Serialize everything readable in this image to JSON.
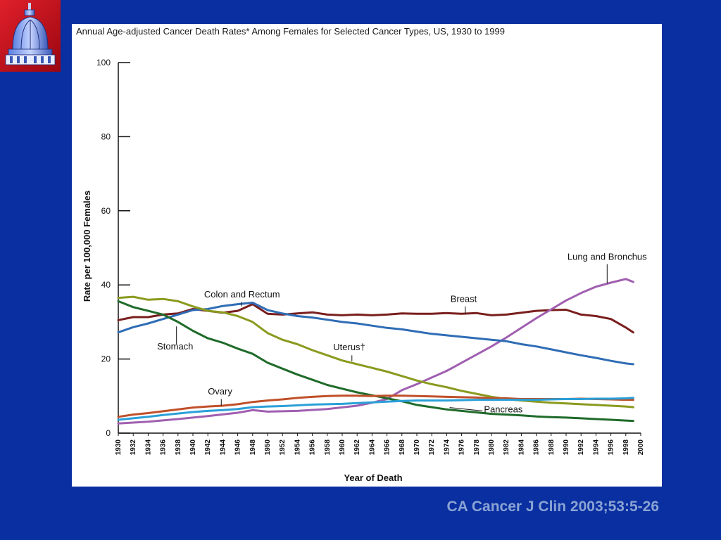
{
  "citation": "CA Cancer J Clin 2003;53:5-26",
  "logo": {
    "icon": "capitol-dome-icon"
  },
  "chart_data": {
    "type": "line",
    "title": "Annual Age-adjusted Cancer Death Rates* Among Females for Selected Cancer Types, US, 1930 to 1999",
    "xlabel": "Year of Death",
    "ylabel": "Rate per 100,000 Females",
    "xlim": [
      1930,
      2000
    ],
    "ylim": [
      0,
      100
    ],
    "yticks": [
      0,
      20,
      40,
      60,
      80,
      100
    ],
    "xticks": [
      1930,
      1932,
      1934,
      1936,
      1938,
      1940,
      1942,
      1944,
      1946,
      1948,
      1950,
      1952,
      1954,
      1956,
      1958,
      1960,
      1962,
      1964,
      1966,
      1968,
      1970,
      1972,
      1974,
      1976,
      1978,
      1980,
      1982,
      1984,
      1986,
      1988,
      1990,
      1992,
      1994,
      1996,
      1998,
      2000
    ],
    "grid": false,
    "series": [
      {
        "name": "Breast",
        "color": "#7a1e1e",
        "points": [
          [
            1930,
            30.5
          ],
          [
            1932,
            31.3
          ],
          [
            1934,
            31.3
          ],
          [
            1936,
            32.0
          ],
          [
            1938,
            32.3
          ],
          [
            1940,
            33.5
          ],
          [
            1942,
            33.0
          ],
          [
            1944,
            32.5
          ],
          [
            1946,
            33.0
          ],
          [
            1948,
            34.8
          ],
          [
            1950,
            32.2
          ],
          [
            1952,
            32.0
          ],
          [
            1954,
            32.3
          ],
          [
            1956,
            32.6
          ],
          [
            1958,
            32.0
          ],
          [
            1960,
            31.8
          ],
          [
            1962,
            32.0
          ],
          [
            1964,
            31.8
          ],
          [
            1966,
            32.0
          ],
          [
            1968,
            32.3
          ],
          [
            1970,
            32.2
          ],
          [
            1972,
            32.2
          ],
          [
            1974,
            32.4
          ],
          [
            1976,
            32.2
          ],
          [
            1978,
            32.4
          ],
          [
            1980,
            31.8
          ],
          [
            1982,
            32.0
          ],
          [
            1984,
            32.5
          ],
          [
            1986,
            33.0
          ],
          [
            1988,
            33.2
          ],
          [
            1990,
            33.3
          ],
          [
            1992,
            32.0
          ],
          [
            1994,
            31.6
          ],
          [
            1996,
            30.8
          ],
          [
            1998,
            28.5
          ],
          [
            1999,
            27.2
          ]
        ]
      },
      {
        "name": "Lung and Bronchus",
        "color": "#a05fb0",
        "points": [
          [
            1930,
            2.6
          ],
          [
            1934,
            3.1
          ],
          [
            1938,
            3.8
          ],
          [
            1942,
            4.6
          ],
          [
            1946,
            5.5
          ],
          [
            1948,
            6.2
          ],
          [
            1950,
            5.8
          ],
          [
            1954,
            6.0
          ],
          [
            1958,
            6.5
          ],
          [
            1962,
            7.4
          ],
          [
            1964,
            8.2
          ],
          [
            1966,
            9.2
          ],
          [
            1968,
            11.6
          ],
          [
            1970,
            13.2
          ],
          [
            1972,
            15.0
          ],
          [
            1974,
            16.8
          ],
          [
            1976,
            19.0
          ],
          [
            1978,
            21.2
          ],
          [
            1980,
            23.4
          ],
          [
            1982,
            25.8
          ],
          [
            1984,
            28.4
          ],
          [
            1986,
            31.0
          ],
          [
            1988,
            33.4
          ],
          [
            1990,
            35.8
          ],
          [
            1992,
            37.8
          ],
          [
            1994,
            39.5
          ],
          [
            1996,
            40.6
          ],
          [
            1998,
            41.6
          ],
          [
            1999,
            40.8
          ]
        ]
      },
      {
        "name": "Colon and Rectum",
        "color": "#2f6db5",
        "points": [
          [
            1930,
            27.2
          ],
          [
            1932,
            28.6
          ],
          [
            1934,
            29.6
          ],
          [
            1936,
            30.8
          ],
          [
            1938,
            32.0
          ],
          [
            1940,
            33.2
          ],
          [
            1942,
            33.5
          ],
          [
            1944,
            34.3
          ],
          [
            1946,
            34.8
          ],
          [
            1948,
            35.2
          ],
          [
            1950,
            33.2
          ],
          [
            1952,
            32.3
          ],
          [
            1954,
            31.6
          ],
          [
            1956,
            31.2
          ],
          [
            1958,
            30.6
          ],
          [
            1960,
            30.0
          ],
          [
            1962,
            29.6
          ],
          [
            1964,
            29.0
          ],
          [
            1966,
            28.4
          ],
          [
            1968,
            28.0
          ],
          [
            1970,
            27.4
          ],
          [
            1972,
            26.8
          ],
          [
            1974,
            26.4
          ],
          [
            1976,
            26.0
          ],
          [
            1978,
            25.6
          ],
          [
            1980,
            25.2
          ],
          [
            1982,
            24.8
          ],
          [
            1984,
            24.0
          ],
          [
            1986,
            23.4
          ],
          [
            1988,
            22.6
          ],
          [
            1990,
            21.8
          ],
          [
            1992,
            21.0
          ],
          [
            1994,
            20.3
          ],
          [
            1996,
            19.5
          ],
          [
            1998,
            18.8
          ],
          [
            1999,
            18.6
          ]
        ]
      },
      {
        "name": "Uterus†",
        "color": "#8a9a1e",
        "points": [
          [
            1930,
            36.5
          ],
          [
            1932,
            36.8
          ],
          [
            1934,
            36.0
          ],
          [
            1936,
            36.2
          ],
          [
            1938,
            35.6
          ],
          [
            1940,
            34.2
          ],
          [
            1942,
            33.0
          ],
          [
            1944,
            32.6
          ],
          [
            1946,
            31.6
          ],
          [
            1948,
            30.0
          ],
          [
            1950,
            27.0
          ],
          [
            1952,
            25.2
          ],
          [
            1954,
            24.0
          ],
          [
            1956,
            22.4
          ],
          [
            1958,
            21.0
          ],
          [
            1960,
            19.6
          ],
          [
            1962,
            18.6
          ],
          [
            1964,
            17.6
          ],
          [
            1966,
            16.6
          ],
          [
            1968,
            15.4
          ],
          [
            1970,
            14.2
          ],
          [
            1972,
            13.2
          ],
          [
            1974,
            12.4
          ],
          [
            1976,
            11.4
          ],
          [
            1978,
            10.6
          ],
          [
            1980,
            9.8
          ],
          [
            1982,
            9.2
          ],
          [
            1984,
            8.8
          ],
          [
            1986,
            8.5
          ],
          [
            1988,
            8.2
          ],
          [
            1990,
            8.0
          ],
          [
            1992,
            7.8
          ],
          [
            1994,
            7.6
          ],
          [
            1996,
            7.4
          ],
          [
            1998,
            7.2
          ],
          [
            1999,
            7.0
          ]
        ]
      },
      {
        "name": "Stomach",
        "color": "#1f6b2a",
        "points": [
          [
            1930,
            35.6
          ],
          [
            1932,
            34.0
          ],
          [
            1934,
            33.0
          ],
          [
            1936,
            32.0
          ],
          [
            1938,
            30.0
          ],
          [
            1940,
            27.6
          ],
          [
            1942,
            25.6
          ],
          [
            1944,
            24.4
          ],
          [
            1946,
            22.8
          ],
          [
            1948,
            21.4
          ],
          [
            1950,
            19.0
          ],
          [
            1952,
            17.4
          ],
          [
            1954,
            15.8
          ],
          [
            1956,
            14.4
          ],
          [
            1958,
            13.0
          ],
          [
            1960,
            12.0
          ],
          [
            1962,
            11.0
          ],
          [
            1964,
            10.2
          ],
          [
            1966,
            9.4
          ],
          [
            1968,
            8.6
          ],
          [
            1970,
            7.6
          ],
          [
            1972,
            7.0
          ],
          [
            1974,
            6.4
          ],
          [
            1976,
            6.0
          ],
          [
            1978,
            5.6
          ],
          [
            1980,
            5.2
          ],
          [
            1982,
            5.0
          ],
          [
            1984,
            4.8
          ],
          [
            1986,
            4.5
          ],
          [
            1988,
            4.3
          ],
          [
            1990,
            4.2
          ],
          [
            1992,
            4.0
          ],
          [
            1994,
            3.8
          ],
          [
            1996,
            3.6
          ],
          [
            1998,
            3.4
          ],
          [
            1999,
            3.3
          ]
        ]
      },
      {
        "name": "Ovary",
        "color": "#c0502a",
        "points": [
          [
            1930,
            4.4
          ],
          [
            1932,
            5.0
          ],
          [
            1934,
            5.4
          ],
          [
            1936,
            5.9
          ],
          [
            1938,
            6.4
          ],
          [
            1940,
            6.9
          ],
          [
            1942,
            7.2
          ],
          [
            1944,
            7.4
          ],
          [
            1946,
            7.8
          ],
          [
            1948,
            8.4
          ],
          [
            1950,
            8.8
          ],
          [
            1952,
            9.1
          ],
          [
            1954,
            9.5
          ],
          [
            1956,
            9.8
          ],
          [
            1958,
            10.0
          ],
          [
            1960,
            10.1
          ],
          [
            1962,
            10.1
          ],
          [
            1964,
            10.0
          ],
          [
            1966,
            10.1
          ],
          [
            1968,
            10.1
          ],
          [
            1970,
            10.0
          ],
          [
            1972,
            9.9
          ],
          [
            1974,
            9.8
          ],
          [
            1976,
            9.7
          ],
          [
            1978,
            9.6
          ],
          [
            1980,
            9.4
          ],
          [
            1982,
            9.4
          ],
          [
            1984,
            9.2
          ],
          [
            1986,
            9.2
          ],
          [
            1988,
            9.2
          ],
          [
            1990,
            9.2
          ],
          [
            1992,
            9.3
          ],
          [
            1994,
            9.2
          ],
          [
            1996,
            9.1
          ],
          [
            1998,
            9.0
          ],
          [
            1999,
            9.0
          ]
        ]
      },
      {
        "name": "Pancreas",
        "color": "#2aa0d8",
        "points": [
          [
            1930,
            3.6
          ],
          [
            1932,
            4.0
          ],
          [
            1934,
            4.4
          ],
          [
            1936,
            4.9
          ],
          [
            1938,
            5.3
          ],
          [
            1940,
            5.7
          ],
          [
            1942,
            6.0
          ],
          [
            1944,
            6.2
          ],
          [
            1946,
            6.5
          ],
          [
            1948,
            7.0
          ],
          [
            1950,
            7.2
          ],
          [
            1952,
            7.3
          ],
          [
            1954,
            7.5
          ],
          [
            1956,
            7.7
          ],
          [
            1958,
            7.8
          ],
          [
            1960,
            7.9
          ],
          [
            1962,
            8.1
          ],
          [
            1964,
            8.3
          ],
          [
            1966,
            8.5
          ],
          [
            1968,
            8.7
          ],
          [
            1970,
            8.8
          ],
          [
            1972,
            8.8
          ],
          [
            1974,
            8.8
          ],
          [
            1976,
            8.9
          ],
          [
            1978,
            9.0
          ],
          [
            1980,
            9.0
          ],
          [
            1982,
            9.0
          ],
          [
            1984,
            9.0
          ],
          [
            1986,
            9.0
          ],
          [
            1988,
            9.1
          ],
          [
            1990,
            9.2
          ],
          [
            1992,
            9.2
          ],
          [
            1994,
            9.3
          ],
          [
            1996,
            9.3
          ],
          [
            1998,
            9.4
          ],
          [
            1999,
            9.5
          ]
        ]
      }
    ],
    "annotations": [
      {
        "text": "Lung and Bronchus",
        "series": "Lung and Bronchus",
        "x": 1995.5,
        "y": 46.8,
        "anchor": "middle",
        "leader": [
          [
            1995.5,
            45.6
          ],
          [
            1995.5,
            40.4
          ]
        ]
      },
      {
        "text": "Colon and Rectum",
        "series": "Colon and Rectum",
        "x": 1941.5,
        "y": 36.6,
        "anchor": "start",
        "leader": [
          [
            1946.5,
            35.4
          ],
          [
            1946.5,
            34.2
          ]
        ]
      },
      {
        "text": "Breast",
        "series": "Breast",
        "x": 1974.5,
        "y": 35.4,
        "anchor": "start",
        "leader": [
          [
            1976.5,
            34.2
          ],
          [
            1976.5,
            32.2
          ]
        ]
      },
      {
        "text": "Stomach",
        "series": "Stomach",
        "x": 1935.2,
        "y": 22.6,
        "anchor": "start",
        "leader": [
          [
            1937.8,
            24.0
          ],
          [
            1937.8,
            28.8
          ]
        ]
      },
      {
        "text": "Uterus†",
        "series": "Uterus†",
        "x": 1958.8,
        "y": 22.4,
        "anchor": "start",
        "leader": [
          [
            1961.3,
            21.0
          ],
          [
            1961.3,
            19.4
          ]
        ]
      },
      {
        "text": "Ovary",
        "series": "Ovary",
        "x": 1942.0,
        "y": 10.4,
        "anchor": "start",
        "leader": [
          [
            1943.8,
            9.2
          ],
          [
            1943.8,
            7.4
          ]
        ]
      },
      {
        "text": "Pancreas",
        "series": "Pancreas",
        "x": 1979.0,
        "y": 5.6,
        "anchor": "start",
        "leader": [
          [
            1978.8,
            6.0
          ],
          [
            1974.4,
            6.9
          ]
        ]
      }
    ]
  }
}
